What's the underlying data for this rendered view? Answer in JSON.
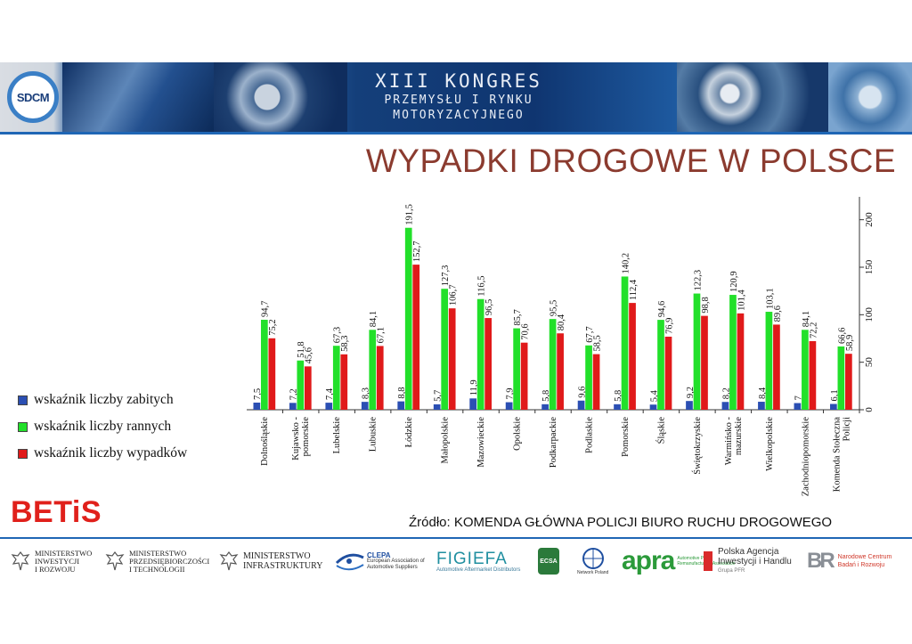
{
  "header": {
    "logo_text": "SDCM",
    "congress_line1": "XIII KONGRES",
    "congress_line2": "PRZEMYSŁU I RYNKU",
    "congress_line3": "MOTORYZACYJNEGO"
  },
  "page_title": "WYPADKI DROGOWE W POLSCE",
  "legend": [
    {
      "label": "wskaźnik liczby zabitych",
      "color": "#2b4fb3"
    },
    {
      "label": "wskaźnik liczby rannych",
      "color": "#22e02a"
    },
    {
      "label": "wskaźnik liczby wypadków",
      "color": "#e01a1a"
    }
  ],
  "chart_data": {
    "type": "bar",
    "categories": [
      "Dolnośląskie",
      "Kujawsko - pomorskie",
      "Lubelskie",
      "Lubuskie",
      "Łódzkie",
      "Małopolskie",
      "Mazowieckie",
      "Opolskie",
      "Podkarpackie",
      "Podlaskie",
      "Pomorskie",
      "Śląskie",
      "Świętokrzyskie",
      "Warmińsko - mazurskie",
      "Wielkopolskie",
      "Zachodniopomorskie",
      "Komenda Stołeczna Policji"
    ],
    "series": [
      {
        "name": "wskaźnik liczby zabitych",
        "values": [
          7.5,
          7.2,
          7.4,
          8.3,
          8.8,
          5.7,
          11.9,
          7.9,
          5.8,
          9.6,
          5.8,
          5.4,
          9.2,
          8.2,
          8.4,
          7,
          6.1
        ],
        "labels": [
          "7,5",
          "7,2",
          "7,4",
          "8,3",
          "8,8",
          "5,7",
          "11,9",
          "7,9",
          "5,8",
          "9,6",
          "5,8",
          "5,4",
          "9,2",
          "8,2",
          "8,4",
          "7",
          "6,1"
        ]
      },
      {
        "name": "wskaźnik liczby rannych",
        "values": [
          94.7,
          51.8,
          67.3,
          84.1,
          191.5,
          127.3,
          116.5,
          85.7,
          95.5,
          67.7,
          140.2,
          94.6,
          122.3,
          120.9,
          103.1,
          84.1,
          66.6
        ],
        "labels": [
          "94,7",
          "51,8",
          "67,3",
          "84,1",
          "191,5",
          "127,3",
          "116,5",
          "85,7",
          "95,5",
          "67,7",
          "140,2",
          "94,6",
          "122,3",
          "120,9",
          "103,1",
          "84,1",
          "66,6"
        ]
      },
      {
        "name": "wskaźnik liczby wypadków",
        "values": [
          75.2,
          45.6,
          58.3,
          67.1,
          152.7,
          106.7,
          96.5,
          70.6,
          80.4,
          58.5,
          112.4,
          76.9,
          98.8,
          101.4,
          89.6,
          72.2,
          58.9
        ],
        "labels": [
          "75,2",
          "45,6",
          "58,3",
          "67,1",
          "152,7",
          "106,7",
          "96,5",
          "70,6",
          "80,4",
          "58,5",
          "112,4",
          "76,9",
          "98,8",
          "101,4",
          "89,6",
          "72,2",
          "58,9"
        ]
      }
    ],
    "yticks": [
      0,
      50,
      100,
      150,
      200
    ],
    "ylim": [
      0,
      220
    ],
    "axis_position": "right"
  },
  "betis_text": "BETiS",
  "source_text": "Źródło: KOMENDA GŁÓWNA POLICJI BIURO RUCHU DROGOWEGO",
  "footer_logos": {
    "m1": [
      "MINISTERSTWO",
      "INWESTYCJI",
      "I ROZWOJU"
    ],
    "m2": [
      "MINISTERSTWO",
      "PRZEDSIĘBIORCZOŚCI",
      "I TECHNOLOGII"
    ],
    "m3": [
      "MINISTERSTWO",
      "INFRASTRUKTURY"
    ],
    "clepa": "CLEPA",
    "clepa_sub1": "European Association of",
    "clepa_sub2": "Automotive Suppliers",
    "figiefa": "FIGIEFA",
    "figiefa_sub": "Automotive Aftermarket Distributors",
    "ecsa": "ECSA",
    "gc_sub": "Network Poland",
    "apra": "apra",
    "apra_sub1": "Automotive Parts",
    "apra_sub2": "Remanufacturers Association",
    "paih1": "Polska Agencja",
    "paih2": "Inwestycji i Handlu",
    "paih3": "Grupa PFR",
    "ncbr1": "Narodowe Centrum",
    "ncbr2": "Badań i Rozwoju"
  },
  "colors": {
    "title": "#8b3b2f",
    "betis": "#e0201b",
    "band": "#1f66b5"
  }
}
